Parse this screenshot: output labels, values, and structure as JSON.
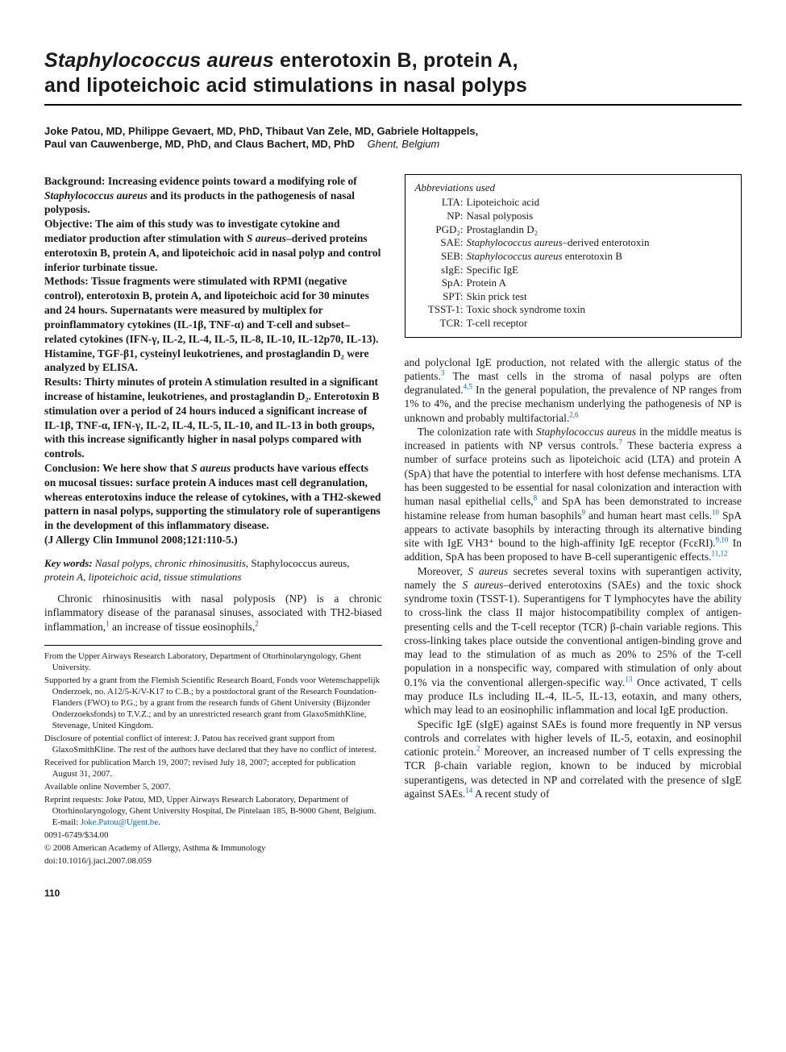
{
  "title": {
    "line1_ital": "Staphylococcus aureus",
    "line1_rest": " enterotoxin B, protein A,",
    "line2": "and lipoteichoic acid stimulations in nasal polyps"
  },
  "authors": {
    "line1": "Joke Patou, MD, Philippe Gevaert, MD, PhD, Thibaut Van Zele, MD, Gabriele Holtappels,",
    "line2": "Paul van Cauwenberge, MD, PhD, and Claus Bachert, MD, PhD",
    "location": "Ghent, Belgium"
  },
  "abstract": {
    "background": "Background: Increasing evidence points toward a modifying role of ",
    "background_ital": "Staphylococcus aureus",
    "background_rest": " and its products in the pathogenesis of nasal polyposis.",
    "objective": "Objective: The aim of this study was to investigate cytokine and mediator production after stimulation with ",
    "objective_ital": "S aureus",
    "objective_rest": "–derived proteins enterotoxin B, protein A, and lipoteichoic acid in nasal polyp and control inferior turbinate tissue.",
    "methods": "Methods: Tissue fragments were stimulated with RPMI (negative control), enterotoxin B, protein A, and lipoteichoic acid for 30 minutes and 24 hours. Supernatants were measured by multiplex for proinflammatory cytokines (IL-1β, TNF-α) and T-cell and subset–related cytokines (IFN-γ, IL-2, IL-4, IL-5, IL-8, IL-10, IL-12p70, IL-13). Histamine, TGF-β1, cysteinyl leukotrienes, and prostaglandin D₂ were analyzed by ELISA.",
    "results": "Results: Thirty minutes of protein A stimulation resulted in a significant increase of histamine, leukotrienes, and prostaglandin D₂. Enterotoxin B stimulation over a period of 24 hours induced a significant increase of IL-1β, TNF-α, IFN-γ, IL-2, IL-4, IL-5, IL-10, and IL-13 in both groups, with this increase significantly higher in nasal polyps compared with controls.",
    "conclusion_a": "Conclusion: We here show that ",
    "conclusion_ital": "S aureus",
    "conclusion_b": " products have various effects on mucosal tissues: surface protein A induces mast cell degranulation, whereas enterotoxins induce the release of cytokines, with a TH2-skewed pattern in nasal polyps, supporting the stimulatory role of superantigens in the development of this inflammatory disease.",
    "citation": "(J Allergy Clin Immunol 2008;121:110-5.)"
  },
  "keywords": {
    "lead": "Key words:",
    "text": " Nasal polyps, chronic rhinosinusitis, ",
    "noital": "Staphylococcus aureus",
    "text2": ", protein A, lipoteichoic acid, tissue stimulations"
  },
  "body_left_p1": "Chronic rhinosinusitis with nasal polyposis (NP) is a chronic inflammatory disease of the paranasal sinuses, associated with TH2-biased inflammation,",
  "body_left_p1_ref1": "1",
  "body_left_p1_b": " an increase of tissue eosinophils,",
  "body_left_p1_ref2": "2",
  "abbreviations": {
    "title": "Abbreviations used",
    "items": [
      {
        "k": "LTA:",
        "v": "Lipoteichoic acid"
      },
      {
        "k": "NP:",
        "v": "Nasal polyposis"
      },
      {
        "k": "PGD₂:",
        "v": "Prostaglandin D₂"
      },
      {
        "k": "SAE:",
        "v_ital": "Staphylococcus aureus",
        "v_rest": "–derived enterotoxin"
      },
      {
        "k": "SEB:",
        "v_ital": "Staphylococcus aureus",
        "v_rest": " enterotoxin B"
      },
      {
        "k": "sIgE:",
        "v": "Specific IgE"
      },
      {
        "k": "SpA:",
        "v": "Protein A"
      },
      {
        "k": "SPT:",
        "v": "Skin prick test"
      },
      {
        "k": "TSST-1:",
        "v": "Toxic shock syndrome toxin"
      },
      {
        "k": "TCR:",
        "v": "T-cell receptor"
      }
    ]
  },
  "body_right": {
    "p1a": "and polyclonal IgE production, not related with the allergic status of the patients.",
    "p1_ref3": "3",
    "p1b": " The mast cells in the stroma of nasal polyps are often degranulated.",
    "p1_ref45": "4,5",
    "p1c": " In the general population, the prevalence of NP ranges from 1% to 4%, and the precise mechanism underlying the pathogenesis of NP is unknown and probably multifactorial.",
    "p1_ref26": "2,6",
    "p2a": "The colonization rate with ",
    "p2_ital1": "Staphylococcus aureus",
    "p2b": " in the middle meatus is increased in patients with NP versus controls.",
    "p2_ref7": "7",
    "p2c": " These bacteria express a number of surface proteins such as lipoteichoic acid (LTA) and protein A (SpA) that have the potential to interfere with host defense mechanisms. LTA has been suggested to be essential for nasal colonization and interaction with human nasal epithelial cells,",
    "p2_ref8": "8",
    "p2d": " and SpA has been demonstrated to increase histamine release from human basophils",
    "p2_ref9": "9",
    "p2e": " and human heart mast cells.",
    "p2_ref10": "10",
    "p2f": " SpA appears to activate basophils by interacting through its alternative binding site with IgE VH3⁺ bound to the high-affinity IgE receptor (FcεRI).",
    "p2_ref910": "9,10",
    "p2g": " In addition, SpA has been proposed to have B-cell superantigenic effects.",
    "p2_ref1112": "11,12",
    "p3a": "Moreover, ",
    "p3_ital1": "S aureus",
    "p3b": " secretes several toxins with superantigen activity, namely the ",
    "p3_ital2": "S aureus",
    "p3c": "–derived enterotoxins (SAEs) and the toxic shock syndrome toxin (TSST-1). Superantigens for T lymphocytes have the ability to cross-link the class II major histocompatibility complex of antigen-presenting cells and the T-cell receptor (TCR) β-chain variable regions. This cross-linking takes place outside the conventional antigen-binding grove and may lead to the stimulation of as much as 20% to 25% of the T-cell population in a nonspecific way, compared with stimulation of only about 0.1% via the conventional allergen-specific way.",
    "p3_ref13": "13",
    "p3d": " Once activated, T cells may produce ILs including IL-4, IL-5, IL-13, eotaxin, and many others, which may lead to an eosinophilic inflammation and local IgE production.",
    "p4a": "Specific IgE (sIgE) against SAEs is found more frequently in NP versus controls and correlates with higher levels of IL-5, eotaxin, and eosinophil cationic protein.",
    "p4_ref2": "2",
    "p4b": " Moreover, an increased number of T cells expressing the TCR β-chain variable region, known to be induced by microbial superantigens, was detected in NP and correlated with the presence of sIgE against SAEs.",
    "p4_ref14": "14",
    "p4c": " A recent study of"
  },
  "footnotes": {
    "from": "From the Upper Airways Research Laboratory, Department of Otorhinolaryngology, Ghent University.",
    "supported": "Supported by a grant from the Flemish Scientific Research Board, Fonds voor Wetenschappelijk Onderzoek, no. A12/5-K/V-K17 to C.B.; by a postdoctoral grant of the Research Foundation-Flanders (FWO) to P.G.; by a grant from the research funds of Ghent University (Bijzonder Onderzoeksfonds) to T.V.Z.; and by an unrestricted research grant from GlaxoSmithKline, Stevenage, United Kingdom.",
    "disclosure": "Disclosure of potential conflict of interest: J. Patou has received grant support from GlaxoSmithKline. The rest of the authors have declared that they have no conflict of interest.",
    "received": "Received for publication March 19, 2007; revised July 18, 2007; accepted for publication August 31, 2007.",
    "available": "Available online November 5, 2007.",
    "reprint": "Reprint requests: Joke Patou, MD, Upper Airways Research Laboratory, Department of Otorhinolaryngology, Ghent University Hospital, De Pintelaan 185, B-9000 Ghent, Belgium. E-mail: ",
    "email": "Joke.Patou@Ugent.be",
    "reprint_end": ".",
    "issn": "0091-6749/$34.00",
    "copyright": "© 2008 American Academy of Allergy, Asthma & Immunology",
    "doi": "doi:10.1016/j.jaci.2007.08.059"
  },
  "page_number": "110"
}
